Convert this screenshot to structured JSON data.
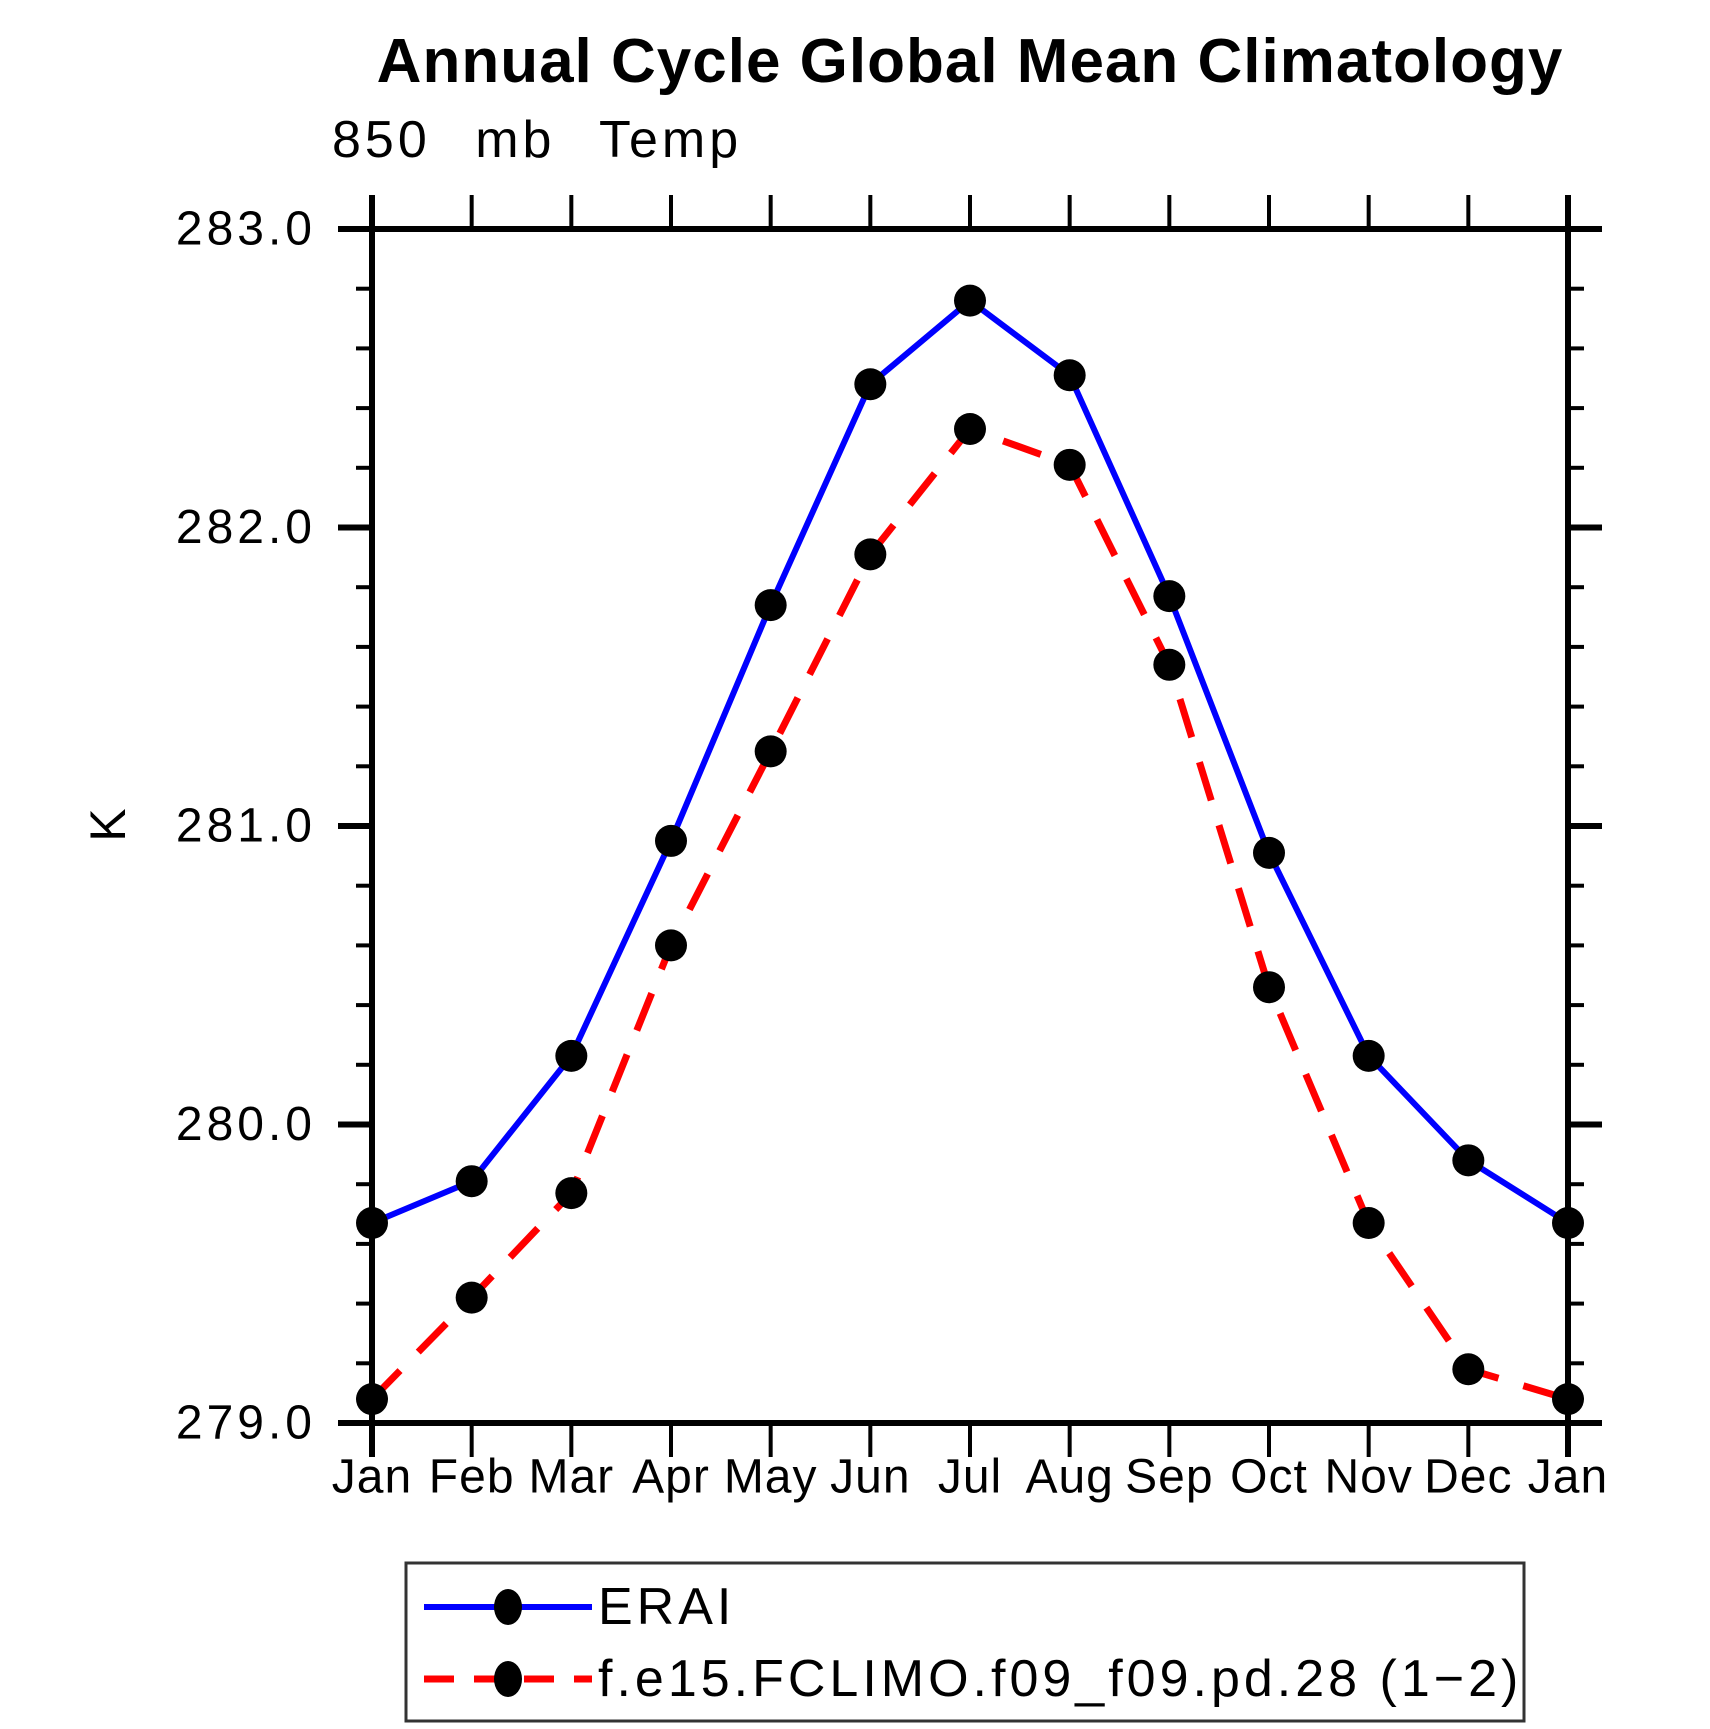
{
  "title": "Annual Cycle Global Mean Climatology",
  "subtitle": "850 mb Temp",
  "chart_data": {
    "type": "line",
    "title": "Annual Cycle Global Mean Climatology",
    "subtitle": "850 mb Temp",
    "xlabel": "",
    "ylabel": "K",
    "categories": [
      "Jan",
      "Feb",
      "Mar",
      "Apr",
      "May",
      "Jun",
      "Jul",
      "Aug",
      "Sep",
      "Oct",
      "Nov",
      "Dec",
      "Jan"
    ],
    "ylim": [
      279.0,
      283.0
    ],
    "ytick_interval": 1.0,
    "yminor_interval": 0.2,
    "ytick_labels": [
      "279.0",
      "280.0",
      "281.0",
      "282.0",
      "283.0"
    ],
    "grid": false,
    "legend_position": "bottom",
    "axis_color": "#000000",
    "marker_color": "#000000",
    "series": [
      {
        "name": "ERAI",
        "color": "#0000ff",
        "style": "solid",
        "marker": "circle",
        "values": [
          279.67,
          279.81,
          280.23,
          280.95,
          281.74,
          282.48,
          282.76,
          282.51,
          281.77,
          280.91,
          280.23,
          279.88,
          279.67
        ]
      },
      {
        "name": "f.e15.FCLIMO.f09_f09.pd.28 (1−2)",
        "color": "#ff0000",
        "style": "dashed",
        "marker": "circle",
        "values": [
          279.08,
          279.42,
          279.77,
          280.6,
          281.25,
          281.91,
          282.33,
          282.21,
          281.54,
          280.46,
          279.67,
          279.18,
          279.08
        ]
      }
    ]
  }
}
